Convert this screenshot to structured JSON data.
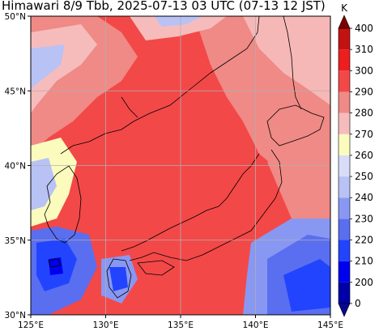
{
  "title": "Himawari 8/9 Tbb, 2025-07-13 03 UTC (07-13 12 JST)",
  "map": {
    "projection": "lat-lon",
    "lon_range": [
      125,
      145
    ],
    "lat_range": [
      30,
      50
    ],
    "x_ticks": [
      "125°E",
      "130°E",
      "135°E",
      "140°E",
      "145°E"
    ],
    "y_ticks": [
      "30°N",
      "35°N",
      "40°N",
      "45°N",
      "50°N"
    ],
    "gridlines": true,
    "regions": [
      "Korean Peninsula",
      "Japan",
      "Sea of Japan",
      "Primorye",
      "Sakhalin",
      "Hokkaido"
    ],
    "background_temperature_K": 290
  },
  "colorbar": {
    "unit": "K",
    "orientation": "vertical",
    "extend": "both",
    "tick_labels": [
      "0",
      "200",
      "210",
      "220",
      "230",
      "240",
      "250",
      "260",
      "270",
      "280",
      "290",
      "300",
      "310",
      "400"
    ],
    "levels": [
      {
        "range": "<0",
        "color": "#08088f"
      },
      {
        "range": "0-200",
        "color": "#0000a8"
      },
      {
        "range": "200-210",
        "color": "#0000ee"
      },
      {
        "range": "210-220",
        "color": "#2244ff"
      },
      {
        "range": "220-230",
        "color": "#5a6ef0"
      },
      {
        "range": "230-240",
        "color": "#8898f2"
      },
      {
        "range": "240-250",
        "color": "#b8c2f5"
      },
      {
        "range": "250-260",
        "color": "#d8dcf8"
      },
      {
        "range": "260-270",
        "color": "#fbfbbe"
      },
      {
        "range": "270-280",
        "color": "#f6bcbc"
      },
      {
        "range": "280-290",
        "color": "#ef8a86"
      },
      {
        "range": "290-300",
        "color": "#f34848"
      },
      {
        "range": "300-310",
        "color": "#ee1e1e"
      },
      {
        "range": "310-400",
        "color": "#c41212"
      },
      {
        "range": ">400",
        "color": "#800000"
      }
    ]
  }
}
